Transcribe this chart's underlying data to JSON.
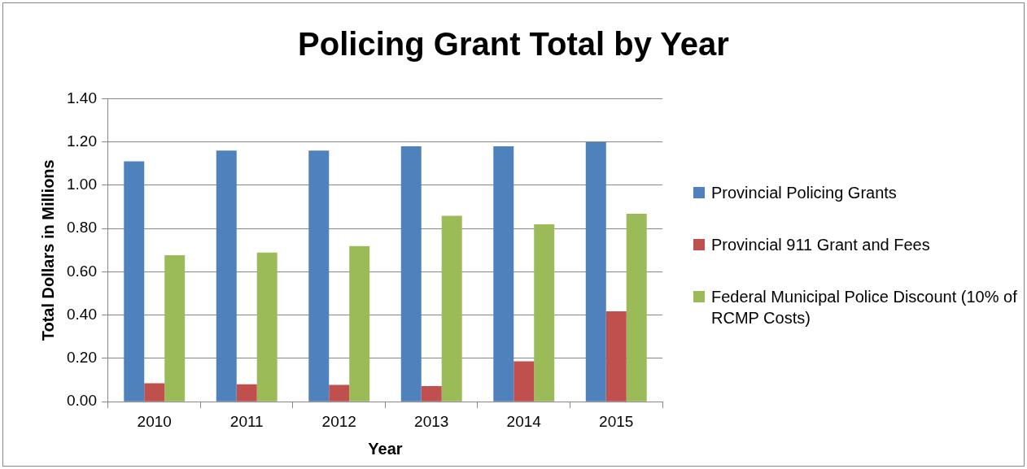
{
  "chart_data": {
    "type": "bar",
    "title": "Policing Grant Total by Year",
    "xlabel": "Year",
    "ylabel": "Total Dollars in Millions",
    "categories": [
      "2010",
      "2011",
      "2012",
      "2013",
      "2014",
      "2015"
    ],
    "series": [
      {
        "name": "Provincial Policing Grants",
        "color": "#4f81bd",
        "values": [
          1.11,
          1.16,
          1.16,
          1.18,
          1.18,
          1.2
        ]
      },
      {
        "name": "Provincial 911 Grant and Fees",
        "color": "#c0504d",
        "values": [
          0.085,
          0.081,
          0.078,
          0.072,
          0.187,
          0.418
        ]
      },
      {
        "name": "Federal Municipal Police Discount (10% of RCMP Costs)",
        "color": "#9bbb59",
        "values": [
          0.677,
          0.689,
          0.719,
          0.859,
          0.819,
          0.868
        ]
      }
    ],
    "ylim": [
      0,
      1.4
    ],
    "yticks": [
      {
        "value": 0,
        "label": "0.00"
      },
      {
        "value": 0.2,
        "label": "0.20"
      },
      {
        "value": 0.4,
        "label": "0.40"
      },
      {
        "value": 0.6,
        "label": "0.60"
      },
      {
        "value": 0.8,
        "label": "0.80"
      },
      {
        "value": 1,
        "label": "1.00"
      },
      {
        "value": 1.2,
        "label": "1.20"
      },
      {
        "value": 1.4,
        "label": "1.40"
      }
    ],
    "grid": "y",
    "legend": "right"
  }
}
